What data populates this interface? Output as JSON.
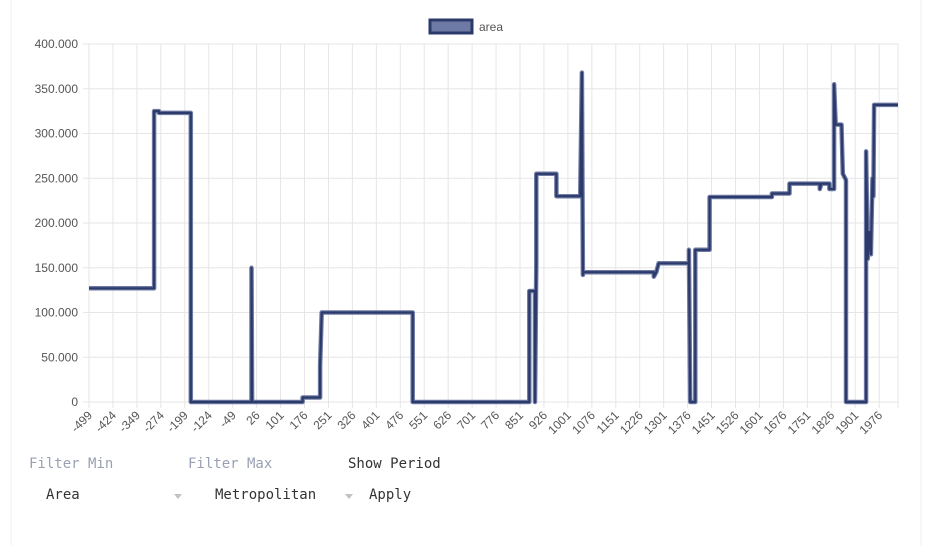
{
  "chart_data": {
    "type": "line",
    "legend": {
      "label": "area",
      "position": "top"
    },
    "colors": {
      "line": "#2b3a6b",
      "line_outline": "#6e7aa3",
      "legend_fill": "#6e7aa3",
      "legend_border": "#2b3a6b",
      "grid": "#e6e6e6"
    },
    "xlim": [
      -499,
      2035
    ],
    "ylim": [
      0,
      400000
    ],
    "y_ticks": [
      "400.000",
      "350.000",
      "300.000",
      "250.000",
      "200.000",
      "150.000",
      "100.000",
      "50.000",
      "0"
    ],
    "x_ticks": [
      "-499",
      "-424",
      "-349",
      "-274",
      "-199",
      "-124",
      "-49",
      "26",
      "101",
      "176",
      "251",
      "326",
      "401",
      "476",
      "551",
      "626",
      "701",
      "776",
      "851",
      "926",
      "1001",
      "1076",
      "1151",
      "1226",
      "1301",
      "1376",
      "1451",
      "1526",
      "1601",
      "1676",
      "1751",
      "1826",
      "1901",
      "1976"
    ],
    "grid": true,
    "series": [
      {
        "name": "area",
        "points": [
          [
            -499,
            127000
          ],
          [
            -295,
            127000
          ],
          [
            -295,
            325000
          ],
          [
            -280,
            325000
          ],
          [
            -280,
            323000
          ],
          [
            -180,
            323000
          ],
          [
            -180,
            0
          ],
          [
            10,
            0
          ],
          [
            10,
            150000
          ],
          [
            12,
            0
          ],
          [
            170,
            0
          ],
          [
            170,
            5000
          ],
          [
            225,
            5000
          ],
          [
            225,
            40000
          ],
          [
            230,
            100000
          ],
          [
            515,
            100000
          ],
          [
            515,
            0
          ],
          [
            880,
            0
          ],
          [
            880,
            124000
          ],
          [
            898,
            124000
          ],
          [
            898,
            0
          ],
          [
            902,
            155000
          ],
          [
            902,
            255000
          ],
          [
            965,
            255000
          ],
          [
            965,
            230000
          ],
          [
            1040,
            230000
          ],
          [
            1040,
            237000
          ],
          [
            1045,
            368000
          ],
          [
            1048,
            142000
          ],
          [
            1050,
            145000
          ],
          [
            1270,
            145000
          ],
          [
            1270,
            140000
          ],
          [
            1278,
            145000
          ],
          [
            1285,
            155000
          ],
          [
            1380,
            155000
          ],
          [
            1380,
            170000
          ],
          [
            1384,
            0
          ],
          [
            1400,
            0
          ],
          [
            1400,
            170000
          ],
          [
            1445,
            170000
          ],
          [
            1445,
            229000
          ],
          [
            1640,
            229000
          ],
          [
            1640,
            233000
          ],
          [
            1695,
            233000
          ],
          [
            1695,
            244000
          ],
          [
            1790,
            244000
          ],
          [
            1790,
            238000
          ],
          [
            1795,
            244000
          ],
          [
            1820,
            244000
          ],
          [
            1820,
            238000
          ],
          [
            1835,
            238000
          ],
          [
            1835,
            355000
          ],
          [
            1840,
            310000
          ],
          [
            1858,
            310000
          ],
          [
            1862,
            255000
          ],
          [
            1872,
            248000
          ],
          [
            1872,
            0
          ],
          [
            1935,
            0
          ],
          [
            1935,
            280000
          ],
          [
            1940,
            160000
          ],
          [
            1945,
            190000
          ],
          [
            1950,
            165000
          ],
          [
            1955,
            250000
          ],
          [
            1958,
            230000
          ],
          [
            1960,
            332000
          ],
          [
            2035,
            332000
          ]
        ]
      }
    ]
  },
  "controls": {
    "filter_min_label": "Filter Min",
    "filter_max_label": "Filter Max",
    "show_period_label": "Show Period",
    "area_value": "Area",
    "metro_value": "Metropolitan",
    "apply_label": "Apply"
  }
}
